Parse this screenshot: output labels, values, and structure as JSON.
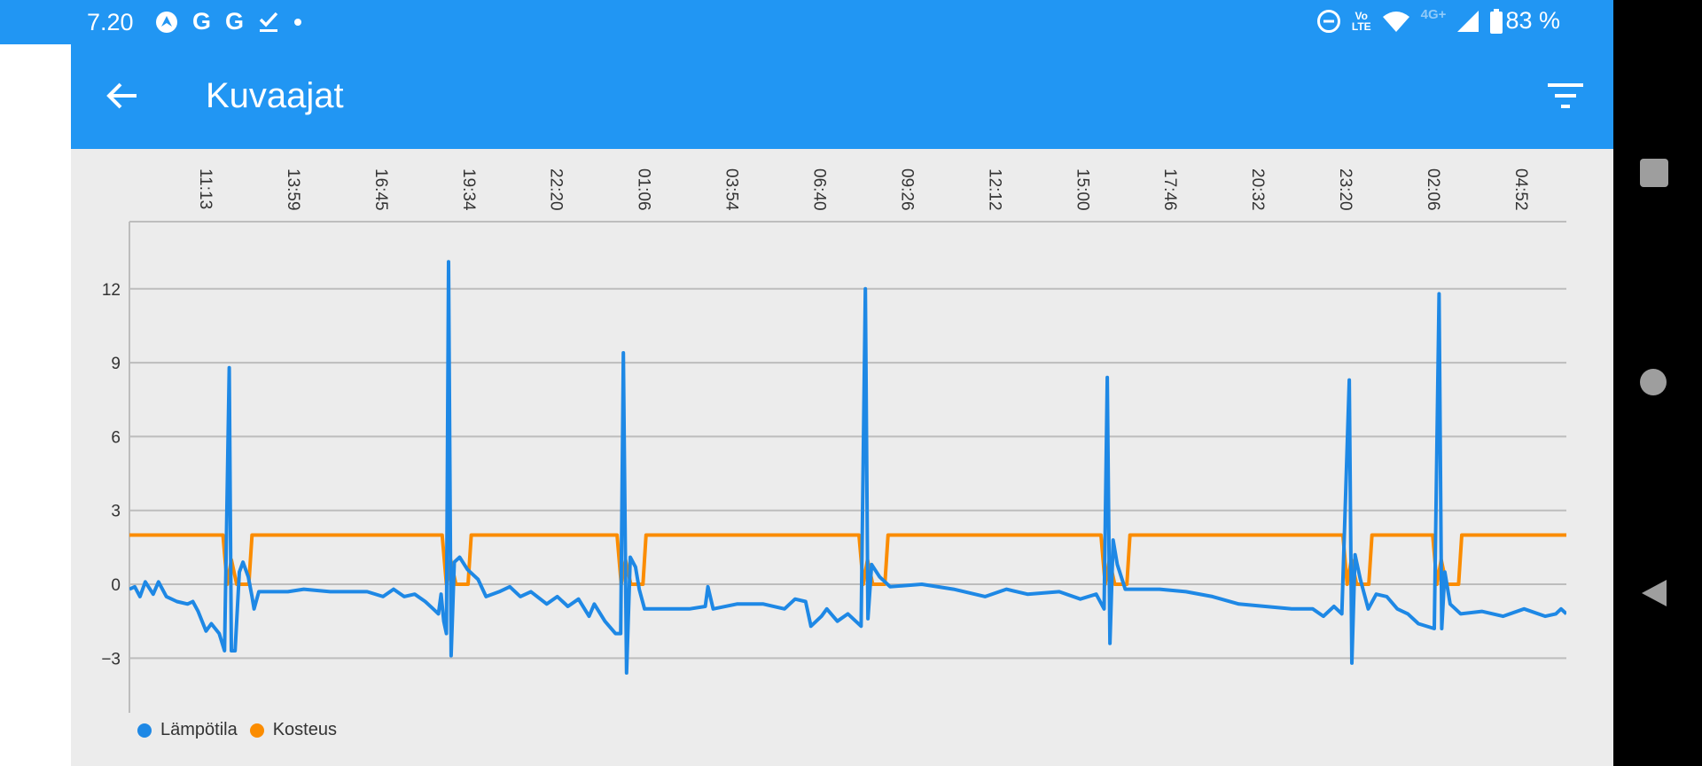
{
  "status_bar": {
    "time": "7.20",
    "left_icons": [
      "navigation-app-icon",
      "google-icon",
      "google-icon",
      "download-done-icon",
      "dot-icon"
    ],
    "google_glyph": "G",
    "right_icons": [
      "do-not-disturb-icon",
      "volte-icon",
      "wifi-icon",
      "4g-icon",
      "signal-icon",
      "battery-icon"
    ],
    "volte_label_top": "Vo",
    "volte_label_bottom": "LTE",
    "network_label": "4G+",
    "battery": "83 %"
  },
  "app_bar": {
    "title": "Kuvaajat",
    "back_icon": "arrow-left-icon",
    "filter_icon": "filter-icon"
  },
  "colors": {
    "primary": "#2196f3",
    "temperature": "#1e88e5",
    "humidity": "#fb8c00",
    "background": "#ececec"
  },
  "chart_data": {
    "type": "line",
    "xlabel": "",
    "ylabel": "",
    "x_unit": "minutes from start",
    "xlim": [
      0,
      2720
    ],
    "ylim": [
      -5.22,
      14.73
    ],
    "y_ticks": [
      -3,
      0,
      3,
      6,
      9,
      12
    ],
    "y_tick_labels": [
      "−3",
      "0",
      "3",
      "6",
      "9",
      "12"
    ],
    "x_tick_positions": [
      146,
      312,
      478,
      644,
      810,
      976,
      1142,
      1308,
      1474,
      1640,
      1806,
      1972,
      2138,
      2304,
      2470,
      2636
    ],
    "x_tick_labels": [
      "11:13",
      "13:59",
      "16:45",
      "19:34",
      "22:20",
      "01:06",
      "03:54",
      "06:40",
      "09:26",
      "12:12",
      "15:00",
      "17:46",
      "20:32",
      "23:20",
      "02:06",
      "04:52"
    ],
    "grid": true,
    "legend_position": "bottom-left",
    "series": [
      {
        "name": "Lämpötila",
        "color": "#1e88e5",
        "points": [
          [
            0,
            -0.2
          ],
          [
            10,
            -0.1
          ],
          [
            20,
            -0.5
          ],
          [
            30,
            0.1
          ],
          [
            45,
            -0.4
          ],
          [
            55,
            0.1
          ],
          [
            70,
            -0.5
          ],
          [
            90,
            -0.7
          ],
          [
            110,
            -0.8
          ],
          [
            120,
            -0.7
          ],
          [
            130,
            -1.1
          ],
          [
            145,
            -1.9
          ],
          [
            155,
            -1.6
          ],
          [
            170,
            -2.0
          ],
          [
            180,
            -2.7
          ],
          [
            189,
            8.8
          ],
          [
            193,
            -2.7
          ],
          [
            200,
            -2.7
          ],
          [
            208,
            0.5
          ],
          [
            215,
            0.9
          ],
          [
            225,
            0.3
          ],
          [
            232,
            -0.5
          ],
          [
            236,
            -1.0
          ],
          [
            245,
            -0.3
          ],
          [
            300,
            -0.3
          ],
          [
            330,
            -0.2
          ],
          [
            380,
            -0.3
          ],
          [
            450,
            -0.3
          ],
          [
            480,
            -0.5
          ],
          [
            500,
            -0.2
          ],
          [
            520,
            -0.5
          ],
          [
            540,
            -0.4
          ],
          [
            560,
            -0.7
          ],
          [
            575,
            -1.0
          ],
          [
            585,
            -1.2
          ],
          [
            590,
            -0.4
          ],
          [
            595,
            -1.5
          ],
          [
            600,
            -2.0
          ],
          [
            604,
            13.1
          ],
          [
            609,
            -2.9
          ],
          [
            615,
            0.9
          ],
          [
            625,
            1.1
          ],
          [
            640,
            0.6
          ],
          [
            660,
            0.2
          ],
          [
            675,
            -0.5
          ],
          [
            700,
            -0.3
          ],
          [
            720,
            -0.1
          ],
          [
            740,
            -0.5
          ],
          [
            760,
            -0.3
          ],
          [
            790,
            -0.8
          ],
          [
            810,
            -0.5
          ],
          [
            830,
            -0.9
          ],
          [
            850,
            -0.6
          ],
          [
            870,
            -1.3
          ],
          [
            880,
            -0.8
          ],
          [
            900,
            -1.5
          ],
          [
            920,
            -2.0
          ],
          [
            930,
            -2.0
          ],
          [
            935,
            9.4
          ],
          [
            941,
            -3.6
          ],
          [
            948,
            1.1
          ],
          [
            958,
            0.7
          ],
          [
            965,
            -0.2
          ],
          [
            975,
            -1.0
          ],
          [
            1030,
            -1.0
          ],
          [
            1060,
            -1.0
          ],
          [
            1090,
            -0.9
          ],
          [
            1095,
            -0.1
          ],
          [
            1105,
            -1.0
          ],
          [
            1150,
            -0.8
          ],
          [
            1200,
            -0.8
          ],
          [
            1240,
            -1.0
          ],
          [
            1260,
            -0.6
          ],
          [
            1280,
            -0.7
          ],
          [
            1290,
            -1.7
          ],
          [
            1310,
            -1.3
          ],
          [
            1320,
            -1.0
          ],
          [
            1340,
            -1.5
          ],
          [
            1360,
            -1.2
          ],
          [
            1385,
            -1.7
          ],
          [
            1393,
            12.0
          ],
          [
            1398,
            -1.4
          ],
          [
            1405,
            0.8
          ],
          [
            1420,
            0.3
          ],
          [
            1440,
            -0.1
          ],
          [
            1500,
            0.0
          ],
          [
            1560,
            -0.2
          ],
          [
            1620,
            -0.5
          ],
          [
            1660,
            -0.2
          ],
          [
            1700,
            -0.4
          ],
          [
            1760,
            -0.3
          ],
          [
            1800,
            -0.6
          ],
          [
            1830,
            -0.4
          ],
          [
            1845,
            -1.0
          ],
          [
            1851,
            8.4
          ],
          [
            1856,
            -2.4
          ],
          [
            1862,
            1.8
          ],
          [
            1870,
            0.8
          ],
          [
            1885,
            -0.2
          ],
          [
            1950,
            -0.2
          ],
          [
            2000,
            -0.3
          ],
          [
            2050,
            -0.5
          ],
          [
            2100,
            -0.8
          ],
          [
            2150,
            -0.9
          ],
          [
            2200,
            -1.0
          ],
          [
            2240,
            -1.0
          ],
          [
            2260,
            -1.3
          ],
          [
            2280,
            -0.9
          ],
          [
            2295,
            -1.2
          ],
          [
            2309,
            8.3
          ],
          [
            2314,
            -3.2
          ],
          [
            2320,
            1.2
          ],
          [
            2330,
            0.2
          ],
          [
            2345,
            -1.0
          ],
          [
            2360,
            -0.4
          ],
          [
            2380,
            -0.5
          ],
          [
            2400,
            -1.0
          ],
          [
            2420,
            -1.2
          ],
          [
            2440,
            -1.6
          ],
          [
            2470,
            -1.8
          ],
          [
            2479,
            11.8
          ],
          [
            2484,
            -1.8
          ],
          [
            2490,
            0.5
          ],
          [
            2500,
            -0.8
          ],
          [
            2520,
            -1.2
          ],
          [
            2560,
            -1.1
          ],
          [
            2600,
            -1.3
          ],
          [
            2640,
            -1.0
          ],
          [
            2680,
            -1.3
          ],
          [
            2700,
            -1.2
          ],
          [
            2710,
            -1.0
          ],
          [
            2720,
            -1.2
          ]
        ]
      },
      {
        "name": "Kosteus",
        "color": "#fb8c00",
        "points": [
          [
            0,
            2
          ],
          [
            177,
            2
          ],
          [
            185,
            0
          ],
          [
            193,
            1
          ],
          [
            203,
            0
          ],
          [
            226,
            0
          ],
          [
            232,
            2
          ],
          [
            592,
            2
          ],
          [
            600,
            0
          ],
          [
            608,
            1
          ],
          [
            618,
            0
          ],
          [
            641,
            0
          ],
          [
            647,
            2
          ],
          [
            923,
            2
          ],
          [
            931,
            0
          ],
          [
            939,
            1
          ],
          [
            949,
            0
          ],
          [
            972,
            0
          ],
          [
            978,
            2
          ],
          [
            1381,
            2
          ],
          [
            1389,
            0
          ],
          [
            1397,
            1
          ],
          [
            1407,
            0
          ],
          [
            1430,
            0
          ],
          [
            1436,
            2
          ],
          [
            1839,
            2
          ],
          [
            1847,
            0
          ],
          [
            1855,
            1
          ],
          [
            1865,
            0
          ],
          [
            1888,
            0
          ],
          [
            1894,
            2
          ],
          [
            2297,
            2
          ],
          [
            2305,
            0
          ],
          [
            2313,
            1
          ],
          [
            2323,
            0
          ],
          [
            2346,
            0
          ],
          [
            2352,
            2
          ],
          [
            2467,
            2
          ],
          [
            2475,
            0
          ],
          [
            2483,
            1
          ],
          [
            2493,
            0
          ],
          [
            2516,
            0
          ],
          [
            2522,
            2
          ],
          [
            2720,
            2
          ]
        ]
      }
    ]
  },
  "legend": [
    {
      "label": "Lämpötila",
      "color": "#1e88e5"
    },
    {
      "label": "Kosteus",
      "color": "#fb8c00"
    }
  ],
  "nav_bar": {
    "icons": [
      "recents-icon",
      "home-icon",
      "back-icon"
    ]
  }
}
